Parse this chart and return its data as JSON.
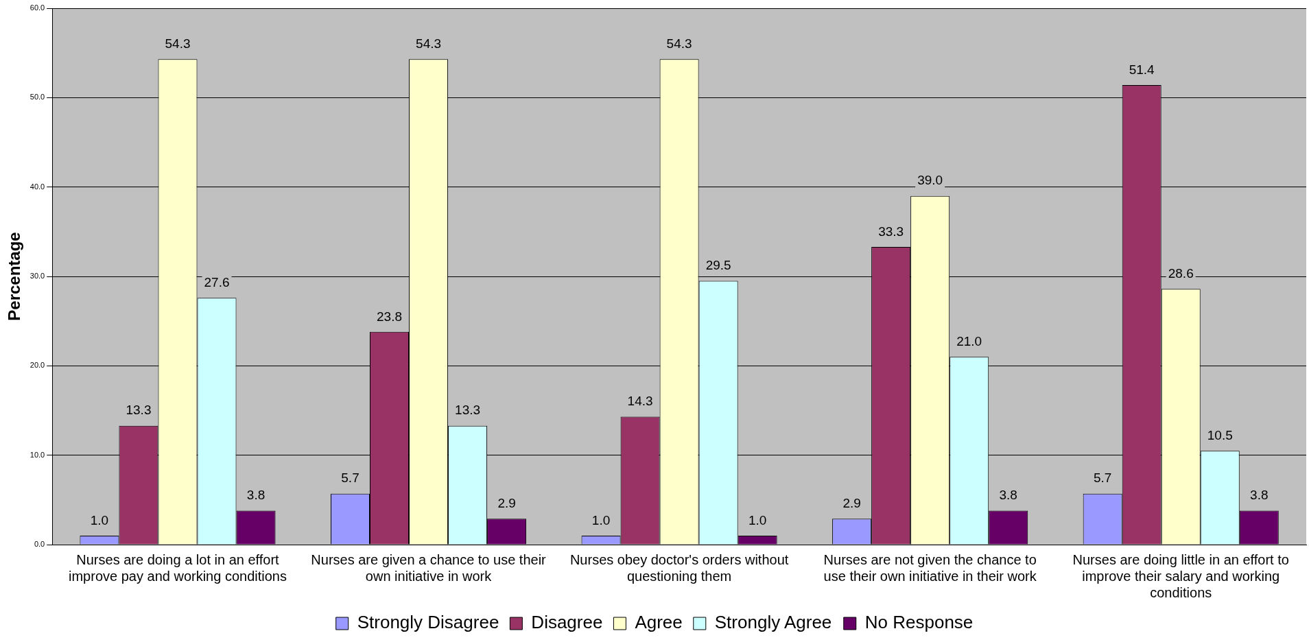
{
  "chart_data": {
    "type": "bar",
    "ylabel": "Percentage",
    "categories": [
      "Nurses are doing a lot in an effort improve pay and working conditions",
      "Nurses are given a chance to use their own initiative in work",
      "Nurses obey doctor's orders without questioning them",
      "Nurses are not given the chance to use their own initiative in their work",
      "Nurses are doing little in an effort to improve their salary and working conditions"
    ],
    "series": [
      {
        "name": "Strongly Disagree",
        "color": "#9999ff",
        "values": [
          1.0,
          5.7,
          1.0,
          2.9,
          5.7
        ],
        "value_labels": [
          "1.0",
          "5.7",
          "1.0",
          "2.9",
          "5.7"
        ]
      },
      {
        "name": "Disagree",
        "color": "#993366",
        "values": [
          13.3,
          23.8,
          14.3,
          33.3,
          51.4
        ],
        "value_labels": [
          "13.3",
          "23.8",
          "14.3",
          "33.3",
          "51.4"
        ]
      },
      {
        "name": "Agree",
        "color": "#ffffcc",
        "values": [
          54.3,
          54.3,
          54.3,
          39.0,
          28.6
        ],
        "value_labels": [
          "54.3",
          "54.3",
          "54.3",
          "39.0",
          "28.6"
        ]
      },
      {
        "name": "Strongly Agree",
        "color": "#ccffff",
        "values": [
          27.6,
          13.3,
          29.5,
          21.0,
          10.5
        ],
        "value_labels": [
          "27.6",
          "13.3",
          "29.5",
          "21.0",
          "10.5"
        ]
      },
      {
        "name": "No Response",
        "color": "#660066",
        "values": [
          3.8,
          2.9,
          1.0,
          3.8,
          3.8
        ],
        "value_labels": [
          "3.8",
          "2.9",
          "1.0",
          "3.8",
          "3.8"
        ]
      }
    ],
    "ylim": [
      0,
      60
    ],
    "yticks": [
      {
        "value": 0,
        "label": "0.0"
      },
      {
        "value": 10,
        "label": "10.0"
      },
      {
        "value": 20,
        "label": "20.0"
      },
      {
        "value": 30,
        "label": "30.0"
      },
      {
        "value": 40,
        "label": "40.0"
      },
      {
        "value": 50,
        "label": "50.0"
      },
      {
        "value": 60,
        "label": "60.0"
      }
    ],
    "grid": "y",
    "legend": "bottom"
  }
}
